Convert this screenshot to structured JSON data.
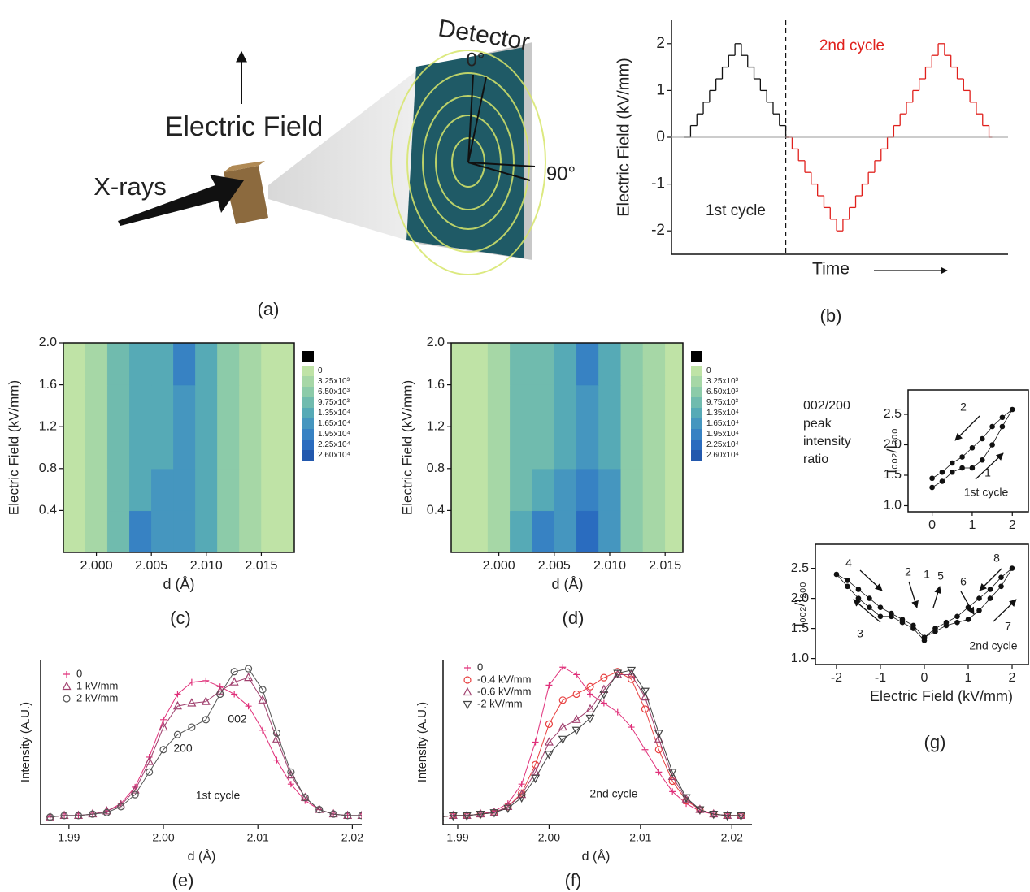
{
  "diagram": {
    "detector": "Detector",
    "angle_0": "0°",
    "angle_90": "90°",
    "field": "Electric Field",
    "xrays": "X-rays",
    "panel_label": "(a)"
  },
  "chart_data": [
    {
      "type": "line",
      "step": true,
      "panel_label": "(b)",
      "xlabel": "Time",
      "ylabel": "Electric Field (kV/mm)",
      "xlim": [
        -2,
        51
      ],
      "ylim": [
        -2.5,
        2.5
      ],
      "yticks": [
        -2,
        -1,
        0,
        1,
        2
      ],
      "series": [
        {
          "name": "1st cycle",
          "color": "#111111",
          "x": [
            0,
            1,
            2,
            3,
            4,
            5,
            6,
            7,
            8,
            9,
            10,
            11,
            12,
            13,
            14,
            15,
            16
          ],
          "values": [
            0,
            0.25,
            0.5,
            0.75,
            1,
            1.25,
            1.5,
            1.75,
            2,
            1.75,
            1.5,
            1.25,
            1,
            0.75,
            0.5,
            0.25,
            0
          ]
        },
        {
          "name": "2nd cycle",
          "color": "#e0201c",
          "x": [
            16,
            17,
            18,
            19,
            20,
            21,
            22,
            23,
            24,
            25,
            26,
            27,
            28,
            29,
            30,
            31,
            32,
            33,
            34,
            35,
            36,
            37,
            38,
            39,
            40,
            41,
            42,
            43,
            44,
            45,
            46,
            47,
            48
          ],
          "values": [
            0,
            -0.25,
            -0.5,
            -0.75,
            -1,
            -1.25,
            -1.5,
            -1.75,
            -2,
            -1.75,
            -1.5,
            -1.25,
            -1,
            -0.75,
            -0.5,
            -0.25,
            0,
            0.25,
            0.5,
            0.75,
            1,
            1.25,
            1.5,
            1.75,
            2,
            1.75,
            1.5,
            1.25,
            1,
            0.75,
            0.5,
            0.25,
            0
          ]
        }
      ]
    },
    {
      "type": "heatmap",
      "panel_label": "(c)",
      "xlabel": "d (Å)",
      "ylabel": "Electric Field (kV/mm)",
      "xlim": [
        1.997,
        2.018
      ],
      "ylim": [
        0,
        2.0
      ],
      "xticks": [
        {
          "value": 2,
          "label": "2.000"
        },
        2.005,
        {
          "value": 2.01,
          "label": "2.010"
        },
        2.015
      ],
      "yticks": [
        0.4,
        0.8,
        1.2,
        1.6,
        {
          "value": 2,
          "label": "2.0"
        }
      ],
      "x": [
        1.998,
        2.0,
        2.002,
        2.004,
        2.006,
        2.008,
        2.01,
        2.012,
        2.014,
        2.016
      ],
      "y": [
        0.2,
        0.6,
        1.0,
        1.4,
        1.8
      ],
      "z": [
        [
          1500,
          6000,
          13000,
          21000,
          18000,
          19000,
          16000,
          9000,
          4000,
          1000
        ],
        [
          1500,
          6000,
          12000,
          16000,
          17000,
          19000,
          16000,
          9000,
          4000,
          1000
        ],
        [
          1500,
          6000,
          11000,
          14000,
          16000,
          18000,
          15000,
          9000,
          4000,
          1000
        ],
        [
          1500,
          6000,
          11000,
          14000,
          16000,
          19000,
          14000,
          9000,
          4000,
          1000
        ],
        [
          1500,
          6000,
          11000,
          14000,
          16000,
          21000,
          14000,
          9000,
          4000,
          1000
        ]
      ],
      "levels": [
        0,
        {
          "value": 3250,
          "label": "3.25x10³"
        },
        {
          "value": 6500,
          "label": "6.50x10³"
        },
        {
          "value": 9750,
          "label": "9.75x10³"
        },
        {
          "value": 13500,
          "label": "1.35x10⁴"
        },
        {
          "value": 16500,
          "label": "1.65x10⁴"
        },
        {
          "value": 19500,
          "label": "1.95x10⁴"
        },
        {
          "value": 22500,
          "label": "2.25x10⁴"
        },
        {
          "value": 26000,
          "label": "2.60x10⁴"
        }
      ],
      "colors": [
        "#bfe3a6",
        "#a6d7a6",
        "#8ccba9",
        "#70bbae",
        "#56aab6",
        "#4596bf",
        "#3782c3",
        "#2a6cbf",
        "#2258ad"
      ]
    },
    {
      "type": "heatmap",
      "panel_label": "(d)",
      "xlabel": "d (Å)",
      "ylabel": "Electric Field (kV/mm)",
      "xlim": [
        1.9957,
        2.0166
      ],
      "ylim": [
        0,
        2.0
      ],
      "xticks": [
        {
          "value": 2,
          "label": "2.000"
        },
        2.005,
        {
          "value": 2.01,
          "label": "2.010"
        },
        2.015
      ],
      "yticks": [
        0.4,
        0.8,
        1.2,
        1.6,
        {
          "value": 2,
          "label": "2.0"
        }
      ],
      "x": [
        1.998,
        2.0,
        2.002,
        2.004,
        2.006,
        2.008,
        2.01,
        2.012,
        2.014,
        2.016
      ],
      "y": [
        0.2,
        0.6,
        1.0,
        1.4,
        1.8
      ],
      "z": [
        [
          1500,
          6000,
          14000,
          21000,
          19000,
          23000,
          17000,
          9000,
          4000,
          1000
        ],
        [
          1500,
          6000,
          12000,
          15000,
          17000,
          20000,
          17000,
          9000,
          4000,
          1000
        ],
        [
          1500,
          6000,
          10000,
          13000,
          16000,
          19000,
          16000,
          9000,
          4000,
          1000
        ],
        [
          1500,
          6000,
          10000,
          13000,
          15000,
          19000,
          15000,
          9000,
          4000,
          1000
        ],
        [
          1500,
          6000,
          10000,
          13000,
          15000,
          20000,
          15000,
          9000,
          4000,
          1000
        ]
      ],
      "levels": [
        0,
        {
          "value": 3250,
          "label": "3.25x10³"
        },
        {
          "value": 6500,
          "label": "6.50x10³"
        },
        {
          "value": 9750,
          "label": "9.75x10³"
        },
        {
          "value": 13500,
          "label": "1.35x10⁴"
        },
        {
          "value": 16500,
          "label": "1.65x10⁴"
        },
        {
          "value": 19500,
          "label": "1.95x10⁴"
        },
        {
          "value": 22500,
          "label": "2.25x10⁴"
        },
        {
          "value": 26000,
          "label": "2.60x10⁴"
        }
      ],
      "colors": [
        "#bfe3a6",
        "#a6d7a6",
        "#8ccba9",
        "#70bbae",
        "#56aab6",
        "#4596bf",
        "#3782c3",
        "#2a6cbf",
        "#2258ad"
      ]
    },
    {
      "type": "line",
      "panel_label": "(e)",
      "xlabel": "d (Å)",
      "ylabel": "Intensity (A.U.)",
      "xlim": [
        1.987,
        2.021
      ],
      "ylim": [
        -0.05,
        1.05
      ],
      "xticks": [
        1.99,
        {
          "value": 2,
          "label": "2.00"
        },
        2.01,
        2.02
      ],
      "annotations": [
        "200",
        "002",
        "1st cycle"
      ],
      "x": [
        1.988,
        1.9895,
        1.991,
        1.9925,
        1.994,
        1.9955,
        1.997,
        1.9985,
        2.0,
        2.0015,
        2.003,
        2.0045,
        2.006,
        2.0075,
        2.009,
        2.0105,
        2.012,
        2.0135,
        2.015,
        2.0165,
        2.018,
        2.0195,
        2.021
      ],
      "series": [
        {
          "name": "0",
          "color": "#e0307a",
          "marker": "plus",
          "values": [
            0,
            0.01,
            0.01,
            0.02,
            0.04,
            0.09,
            0.2,
            0.4,
            0.65,
            0.82,
            0.9,
            0.91,
            0.87,
            0.82,
            0.74,
            0.58,
            0.38,
            0.22,
            0.11,
            0.05,
            0.02,
            0.01,
            0.01
          ]
        },
        {
          "name": "1 kV/mm",
          "color": "#a0406e",
          "marker": "triangle",
          "values": [
            0,
            0.01,
            0.01,
            0.02,
            0.04,
            0.08,
            0.18,
            0.37,
            0.6,
            0.74,
            0.76,
            0.77,
            0.84,
            0.9,
            0.93,
            0.78,
            0.52,
            0.28,
            0.13,
            0.05,
            0.02,
            0.01,
            0.01
          ]
        },
        {
          "name": "2 kV/mm",
          "color": "#555555",
          "marker": "circle",
          "values": [
            0,
            0.01,
            0.01,
            0.02,
            0.03,
            0.07,
            0.15,
            0.3,
            0.45,
            0.55,
            0.6,
            0.65,
            0.82,
            0.97,
            0.99,
            0.85,
            0.56,
            0.3,
            0.13,
            0.05,
            0.02,
            0.01,
            0.01
          ]
        }
      ]
    },
    {
      "type": "line",
      "panel_label": "(f)",
      "xlabel": "d (Å)",
      "ylabel": "Intensity (A.U.)",
      "xlim": [
        1.9884,
        2.0222
      ],
      "ylim": [
        -0.05,
        1.05
      ],
      "xticks": [
        1.99,
        {
          "value": 2,
          "label": "2.00"
        },
        2.01,
        2.02
      ],
      "annotations": [
        "2nd cycle"
      ],
      "x": [
        1.988,
        1.9895,
        1.991,
        1.9925,
        1.994,
        1.9955,
        1.997,
        1.9985,
        2.0,
        2.0015,
        2.003,
        2.0045,
        2.006,
        2.0075,
        2.009,
        2.0105,
        2.012,
        2.0135,
        2.015,
        2.0165,
        2.018,
        2.0195,
        2.021
      ],
      "series": [
        {
          "name": "0",
          "color": "#e0307a",
          "marker": "plus",
          "values": [
            0,
            0.01,
            0.01,
            0.02,
            0.04,
            0.09,
            0.22,
            0.5,
            0.88,
            1.0,
            0.95,
            0.82,
            0.76,
            0.7,
            0.6,
            0.45,
            0.3,
            0.17,
            0.09,
            0.04,
            0.02,
            0.01,
            0.01
          ]
        },
        {
          "name": "-0.4 kV/mm",
          "color": "#e84040",
          "marker": "circle",
          "values": [
            0,
            0.01,
            0.01,
            0.02,
            0.03,
            0.07,
            0.16,
            0.35,
            0.62,
            0.78,
            0.82,
            0.87,
            0.93,
            0.97,
            0.92,
            0.72,
            0.45,
            0.24,
            0.11,
            0.05,
            0.02,
            0.01,
            0.01
          ]
        },
        {
          "name": "-0.6 kV/mm",
          "color": "#a0406e",
          "marker": "triangle",
          "values": [
            0,
            0.01,
            0.01,
            0.02,
            0.03,
            0.07,
            0.15,
            0.3,
            0.5,
            0.6,
            0.65,
            0.72,
            0.85,
            0.95,
            0.95,
            0.8,
            0.52,
            0.27,
            0.12,
            0.05,
            0.02,
            0.01,
            0.01
          ]
        },
        {
          "name": "-2 kV/mm",
          "color": "#444444",
          "marker": "triangle-down",
          "values": [
            0,
            0.01,
            0.01,
            0.02,
            0.03,
            0.06,
            0.13,
            0.26,
            0.42,
            0.52,
            0.58,
            0.66,
            0.82,
            0.96,
            0.98,
            0.84,
            0.56,
            0.3,
            0.13,
            0.05,
            0.02,
            0.01,
            0.01
          ]
        }
      ]
    },
    {
      "type": "scatter",
      "note": [
        "002/200",
        "peak",
        "intensity",
        "ratio"
      ],
      "ylabel": "I₀₀₂/I₂₀₀",
      "xlim": [
        -0.6,
        2.4
      ],
      "ylim": [
        0.9,
        2.9
      ],
      "xticks": [
        0,
        1,
        2
      ],
      "yticks": [
        {
          "value": 1,
          "label": "1.0"
        },
        1.5,
        {
          "value": 2,
          "label": "2.0"
        },
        2.5
      ],
      "annotations": [
        "2",
        "1",
        "1st cycle"
      ],
      "x": [
        0,
        0.25,
        0.5,
        0.75,
        1.0,
        1.25,
        1.5,
        1.75,
        2.0,
        1.75,
        1.5,
        1.25,
        1.0,
        0.75,
        0.5,
        0.25,
        0
      ],
      "values": [
        1.3,
        1.4,
        1.55,
        1.62,
        1.62,
        1.75,
        2.0,
        2.3,
        2.58,
        2.45,
        2.3,
        2.1,
        1.95,
        1.8,
        1.7,
        1.55,
        1.45
      ],
      "color": "#111111"
    },
    {
      "type": "scatter",
      "panel_label": "(g)",
      "xlabel": "Electric Field (kV/mm)",
      "ylabel": "I₀₀₂/I₂₀₀",
      "xlim": [
        -2.48,
        2.37
      ],
      "ylim": [
        0.9,
        2.9
      ],
      "xticks": [
        -2,
        -1,
        0,
        1,
        2
      ],
      "yticks": [
        {
          "value": 1,
          "label": "1.0"
        },
        1.5,
        {
          "value": 2,
          "label": "2.0"
        },
        2.5
      ],
      "annotations": [
        "4",
        "2",
        "1",
        "5",
        "6",
        "8",
        "3",
        "7",
        "2nd cycle"
      ],
      "x": [
        0,
        -0.25,
        -0.5,
        -0.75,
        -1,
        -1.25,
        -1.5,
        -1.75,
        -2,
        -1.75,
        -1.5,
        -1.25,
        -1,
        -0.75,
        -0.5,
        -0.25,
        0,
        0.25,
        0.5,
        0.75,
        1,
        1.25,
        1.5,
        1.75,
        2,
        1.75,
        1.5,
        1.25,
        1,
        0.75,
        0.5,
        0.25,
        0
      ],
      "values": [
        1.3,
        1.5,
        1.6,
        1.7,
        1.7,
        1.85,
        2.0,
        2.2,
        2.4,
        2.3,
        2.15,
        2.0,
        1.85,
        1.75,
        1.65,
        1.55,
        1.35,
        1.45,
        1.55,
        1.6,
        1.65,
        1.8,
        2.0,
        2.2,
        2.5,
        2.35,
        2.15,
        2.0,
        1.85,
        1.7,
        1.6,
        1.5,
        1.35
      ],
      "color": "#111111"
    }
  ]
}
